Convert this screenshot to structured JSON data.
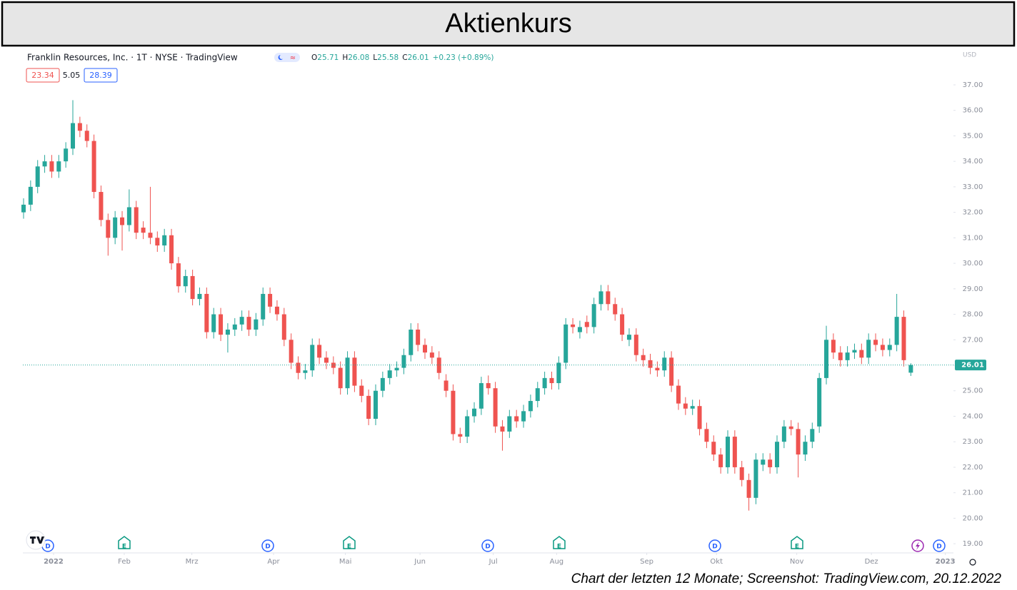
{
  "chart_data": {
    "type": "candlestick",
    "title": "Aktienkurs",
    "caption": "Chart der letzten 12 Monate; Screenshot: TradingView.com, 20.12.2022",
    "header": {
      "symbol": "Franklin Resources, Inc. · 1T · NYSE · TradingView",
      "ohlc_letters": [
        "O",
        "H",
        "L",
        "C"
      ],
      "change": "+0.23 (+0.89%)",
      "indicator_values": [
        "23.34",
        "5.05",
        "28.39"
      ],
      "currency": "USD"
    },
    "event_markers": [
      "D",
      "E",
      "D",
      "E",
      "D",
      "E",
      "D",
      "E",
      "D"
    ],
    "up_color": "#26a69a",
    "down_color": "#ef5350",
    "ylim": [
      18.64,
      38.37
    ],
    "yticks": [
      {
        "value": 19,
        "label": "19.00"
      },
      {
        "value": 20,
        "label": "20.00"
      },
      {
        "value": 21,
        "label": "21.00"
      },
      {
        "value": 22,
        "label": "22.00"
      },
      {
        "value": 23,
        "label": "23.00"
      },
      {
        "value": 24,
        "label": "24.00"
      },
      {
        "value": 25,
        "label": "25.00"
      },
      {
        "value": 26,
        "label": "26.00"
      },
      {
        "value": 27,
        "label": "27.00"
      },
      {
        "value": 28,
        "label": "28.00"
      },
      {
        "value": 29,
        "label": "29.00"
      },
      {
        "value": 30,
        "label": "30.00"
      },
      {
        "value": 31,
        "label": "31.00"
      },
      {
        "value": 32,
        "label": "32.00"
      },
      {
        "value": 33,
        "label": "33.00"
      },
      {
        "value": 34,
        "label": "34.00"
      },
      {
        "value": 35,
        "label": "35.00"
      },
      {
        "value": 36,
        "label": "36.00"
      },
      {
        "value": 37,
        "label": "37.00"
      }
    ],
    "xlim": [
      -0.1,
      132.05
    ],
    "xticks": [
      {
        "value": 4.26,
        "label": "2022"
      },
      {
        "value": 14.3,
        "label": "Feb"
      },
      {
        "value": 23.9,
        "label": "Mrz"
      },
      {
        "value": 35.5,
        "label": "Apr"
      },
      {
        "value": 45.7,
        "label": "Mai"
      },
      {
        "value": 56.3,
        "label": "Jun"
      },
      {
        "value": 66.7,
        "label": "Jul"
      },
      {
        "value": 75.7,
        "label": "Aug"
      },
      {
        "value": 88.5,
        "label": "Sep"
      },
      {
        "value": 98.4,
        "label": "Okt"
      },
      {
        "value": 109.8,
        "label": "Nov"
      },
      {
        "value": 120.4,
        "label": "Dez"
      },
      {
        "value": 130.9,
        "label": "2023"
      }
    ],
    "open": [
      32.0,
      32.3,
      33.0,
      33.8,
      34.0,
      33.6,
      34.0,
      34.5,
      35.5,
      35.2,
      34.8,
      32.8,
      31.7,
      31.0,
      31.8,
      31.5,
      32.2,
      31.4,
      31.2,
      31.0,
      30.7,
      31.1,
      30.0,
      29.1,
      29.5,
      28.6,
      28.8,
      27.3,
      28.0,
      27.2,
      27.4,
      27.6,
      27.9,
      27.4,
      27.8,
      28.8,
      28.3,
      28.0,
      27.0,
      26.1,
      25.7,
      25.8,
      26.8,
      26.3,
      26.1,
      25.9,
      25.1,
      26.3,
      25.2,
      24.8,
      23.9,
      25.0,
      25.5,
      25.8,
      25.9,
      26.4,
      27.4,
      26.8,
      26.5,
      26.3,
      25.4,
      25.0,
      23.3,
      23.2,
      24.0,
      24.3,
      25.3,
      25.1,
      23.6,
      23.4,
      24.0,
      23.8,
      24.2,
      24.6,
      25.1,
      25.5,
      25.3,
      26.1,
      27.6,
      27.3,
      27.7,
      27.5,
      28.4,
      28.9,
      28.4,
      28.0,
      27.0,
      27.2,
      26.4,
      26.2,
      25.9,
      25.8,
      26.3,
      25.2,
      24.5,
      24.3,
      24.4,
      23.5,
      23.0,
      22.5,
      22.0,
      23.2,
      22.0,
      21.5,
      20.8,
      22.1,
      22.3,
      22.0,
      23.0,
      23.6,
      23.5,
      22.5,
      23.0,
      23.6,
      25.5,
      27.0,
      26.5,
      26.2,
      26.5,
      26.6,
      26.3,
      27.0,
      26.8,
      26.6,
      26.8,
      27.9,
      25.71
    ],
    "high": [
      32.55,
      33.25,
      34.05,
      34.25,
      34.25,
      34.25,
      34.75,
      36.4,
      35.75,
      35.45,
      35.05,
      33.05,
      31.95,
      32.05,
      32.05,
      32.9,
      32.45,
      31.65,
      33.0,
      31.25,
      31.35,
      31.35,
      30.25,
      29.75,
      29.75,
      29.05,
      29.05,
      28.25,
      28.25,
      27.65,
      27.85,
      28.15,
      28.15,
      28.05,
      29.05,
      29.05,
      28.55,
      28.25,
      27.25,
      26.35,
      26.05,
      27.05,
      27.05,
      26.55,
      26.35,
      26.15,
      26.55,
      26.55,
      25.45,
      25.05,
      25.25,
      25.75,
      26.05,
      26.15,
      26.65,
      27.65,
      27.65,
      27.05,
      26.75,
      26.55,
      25.65,
      25.25,
      23.55,
      24.25,
      24.55,
      25.55,
      25.6,
      25.35,
      23.85,
      24.25,
      24.25,
      24.45,
      24.85,
      25.35,
      25.75,
      25.75,
      26.35,
      27.85,
      27.85,
      27.75,
      27.95,
      28.65,
      29.15,
      29.15,
      28.65,
      28.25,
      27.45,
      27.45,
      26.65,
      26.45,
      26.15,
      26.55,
      26.55,
      25.45,
      24.75,
      24.65,
      24.65,
      23.75,
      23.25,
      22.75,
      23.45,
      23.45,
      22.25,
      21.75,
      22.55,
      22.55,
      22.55,
      23.25,
      23.85,
      23.85,
      23.75,
      23.25,
      23.75,
      25.7,
      27.55,
      27.25,
      26.75,
      26.75,
      26.85,
      26.85,
      27.25,
      27.25,
      27.05,
      27.05,
      28.8,
      28.15,
      26.08
    ],
    "low": [
      31.75,
      32.05,
      32.75,
      33.55,
      33.35,
      33.35,
      33.75,
      34.25,
      34.95,
      34.55,
      32.55,
      31.45,
      30.3,
      30.75,
      30.5,
      31.25,
      30.95,
      30.95,
      30.75,
      30.45,
      30.45,
      29.75,
      28.85,
      28.85,
      28.35,
      28.35,
      27.05,
      27.05,
      26.95,
      26.5,
      27.15,
      27.35,
      27.15,
      27.15,
      27.55,
      28.05,
      27.75,
      26.75,
      25.85,
      25.45,
      25.45,
      25.55,
      26.05,
      25.85,
      25.65,
      24.85,
      24.85,
      24.95,
      24.55,
      23.65,
      23.65,
      24.75,
      25.25,
      25.55,
      25.65,
      26.15,
      26.55,
      26.25,
      26.05,
      25.45,
      24.75,
      23.05,
      22.95,
      22.95,
      23.75,
      24.05,
      24.85,
      23.35,
      22.65,
      23.15,
      23.55,
      23.55,
      23.95,
      24.35,
      24.85,
      25.05,
      25.05,
      25.85,
      27.25,
      27.05,
      27.25,
      27.25,
      28.15,
      28.15,
      27.75,
      26.95,
      26.75,
      26.15,
      25.95,
      25.65,
      25.55,
      25.55,
      24.95,
      24.25,
      24.05,
      24.05,
      23.25,
      22.75,
      22.25,
      21.75,
      21.75,
      21.75,
      21.25,
      20.3,
      20.55,
      21.85,
      21.75,
      21.75,
      22.75,
      23.25,
      21.6,
      22.25,
      22.75,
      23.35,
      25.25,
      26.25,
      25.95,
      25.95,
      26.25,
      26.05,
      26.05,
      26.55,
      26.35,
      26.35,
      26.55,
      25.95,
      25.58
    ],
    "close": [
      32.3,
      33.0,
      33.8,
      34.0,
      33.6,
      34.0,
      34.5,
      35.5,
      35.2,
      34.8,
      32.8,
      31.7,
      31.0,
      31.8,
      31.5,
      32.2,
      31.2,
      31.2,
      31.0,
      30.7,
      31.1,
      30.0,
      29.1,
      29.5,
      28.6,
      28.8,
      27.3,
      28.0,
      27.2,
      27.4,
      27.6,
      27.9,
      27.4,
      27.8,
      28.8,
      28.3,
      28.0,
      27.0,
      26.1,
      25.7,
      25.8,
      26.8,
      26.3,
      26.1,
      25.9,
      25.1,
      26.3,
      25.2,
      24.8,
      23.9,
      25.0,
      25.5,
      25.8,
      25.9,
      26.4,
      27.4,
      26.8,
      26.5,
      26.3,
      25.7,
      25.0,
      23.3,
      23.2,
      24.0,
      24.3,
      25.3,
      25.1,
      23.6,
      23.4,
      24.0,
      23.8,
      24.2,
      24.6,
      25.1,
      25.5,
      25.3,
      26.1,
      27.6,
      27.5,
      27.5,
      27.5,
      28.4,
      28.9,
      28.4,
      28.0,
      27.2,
      27.2,
      26.4,
      26.2,
      25.9,
      25.8,
      26.3,
      25.2,
      24.5,
      24.3,
      24.4,
      23.5,
      23.0,
      22.5,
      22.0,
      23.2,
      22.0,
      21.5,
      20.8,
      22.3,
      22.3,
      22.0,
      23.0,
      23.6,
      23.5,
      22.5,
      23.0,
      23.5,
      25.5,
      27.0,
      26.5,
      26.2,
      26.5,
      26.6,
      26.3,
      27.0,
      26.8,
      26.6,
      26.8,
      27.9,
      26.2,
      26.01
    ]
  }
}
